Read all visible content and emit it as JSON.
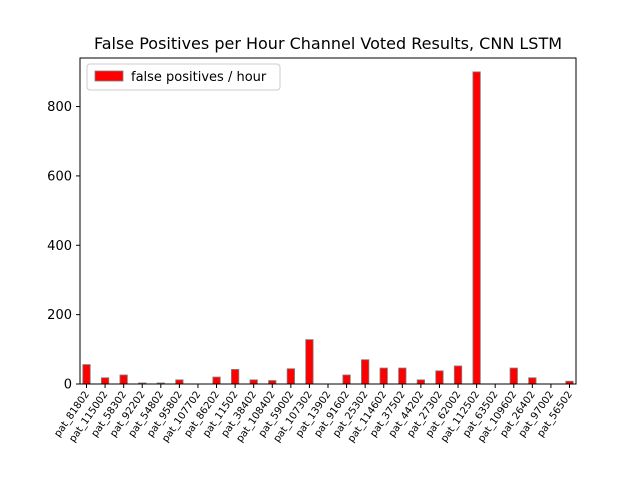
{
  "chart_data": {
    "type": "bar",
    "title": "False Positives per Hour Channel Voted Results, CNN LSTM",
    "xlabel": "",
    "ylabel": "",
    "ylim": [
      0,
      940
    ],
    "yticks": [
      0,
      200,
      400,
      600,
      800
    ],
    "grid": false,
    "legend_position": "top-left",
    "bar_color": "#ff0000",
    "bar_edge_color": "#808080",
    "series": [
      {
        "name": "false positives / hour"
      }
    ],
    "points": [
      {
        "category": "pat_81802",
        "value": 56,
        "labeled": true
      },
      {
        "category": "",
        "value": 0,
        "labeled": false
      },
      {
        "category": "pat_115002",
        "value": 18,
        "labeled": true
      },
      {
        "category": "",
        "value": 0,
        "labeled": false
      },
      {
        "category": "pat_58302",
        "value": 26,
        "labeled": true
      },
      {
        "category": "",
        "value": 0,
        "labeled": false
      },
      {
        "category": "pat_92202",
        "value": 3,
        "labeled": true
      },
      {
        "category": "",
        "value": 0,
        "labeled": false
      },
      {
        "category": "pat_54802",
        "value": 3,
        "labeled": true
      },
      {
        "category": "",
        "value": 0,
        "labeled": false
      },
      {
        "category": "pat_95802",
        "value": 12,
        "labeled": true
      },
      {
        "category": "",
        "value": 0,
        "labeled": false
      },
      {
        "category": "pat_107702",
        "value": 0,
        "labeled": true
      },
      {
        "category": "",
        "value": 0,
        "labeled": false
      },
      {
        "category": "pat_86202",
        "value": 20,
        "labeled": true
      },
      {
        "category": "",
        "value": 0,
        "labeled": false
      },
      {
        "category": "pat_11502",
        "value": 42,
        "labeled": true
      },
      {
        "category": "",
        "value": 0,
        "labeled": false
      },
      {
        "category": "pat_38402",
        "value": 12,
        "labeled": true
      },
      {
        "category": "",
        "value": 0,
        "labeled": false
      },
      {
        "category": "pat_108402",
        "value": 10,
        "labeled": true
      },
      {
        "category": "",
        "value": 0,
        "labeled": false
      },
      {
        "category": "pat_59002",
        "value": 44,
        "labeled": true
      },
      {
        "category": "",
        "value": 0,
        "labeled": false
      },
      {
        "category": "pat_107302",
        "value": 128,
        "labeled": true
      },
      {
        "category": "",
        "value": 0,
        "labeled": false
      },
      {
        "category": "pat_13902",
        "value": 0,
        "labeled": true
      },
      {
        "category": "",
        "value": 0,
        "labeled": false
      },
      {
        "category": "pat_91602",
        "value": 26,
        "labeled": true
      },
      {
        "category": "",
        "value": 0,
        "labeled": false
      },
      {
        "category": "pat_25302",
        "value": 70,
        "labeled": true
      },
      {
        "category": "",
        "value": 0,
        "labeled": false
      },
      {
        "category": "pat_114602",
        "value": 46,
        "labeled": true
      },
      {
        "category": "",
        "value": 0,
        "labeled": false
      },
      {
        "category": "pat_37502",
        "value": 46,
        "labeled": true
      },
      {
        "category": "",
        "value": 0,
        "labeled": false
      },
      {
        "category": "pat_44202",
        "value": 12,
        "labeled": true
      },
      {
        "category": "",
        "value": 0,
        "labeled": false
      },
      {
        "category": "pat_27302",
        "value": 38,
        "labeled": true
      },
      {
        "category": "",
        "value": 0,
        "labeled": false
      },
      {
        "category": "pat_62002",
        "value": 52,
        "labeled": true
      },
      {
        "category": "",
        "value": 0,
        "labeled": false
      },
      {
        "category": "pat_112502",
        "value": 900,
        "labeled": true
      },
      {
        "category": "",
        "value": 0,
        "labeled": false
      },
      {
        "category": "pat_63502",
        "value": 0,
        "labeled": true
      },
      {
        "category": "",
        "value": 0,
        "labeled": false
      },
      {
        "category": "pat_109602",
        "value": 46,
        "labeled": true
      },
      {
        "category": "",
        "value": 0,
        "labeled": false
      },
      {
        "category": "pat_26402",
        "value": 18,
        "labeled": true
      },
      {
        "category": "",
        "value": 0,
        "labeled": false
      },
      {
        "category": "pat_97002",
        "value": 0,
        "labeled": true
      },
      {
        "category": "",
        "value": 0,
        "labeled": false
      },
      {
        "category": "pat_56502",
        "value": 8,
        "labeled": true
      }
    ]
  }
}
